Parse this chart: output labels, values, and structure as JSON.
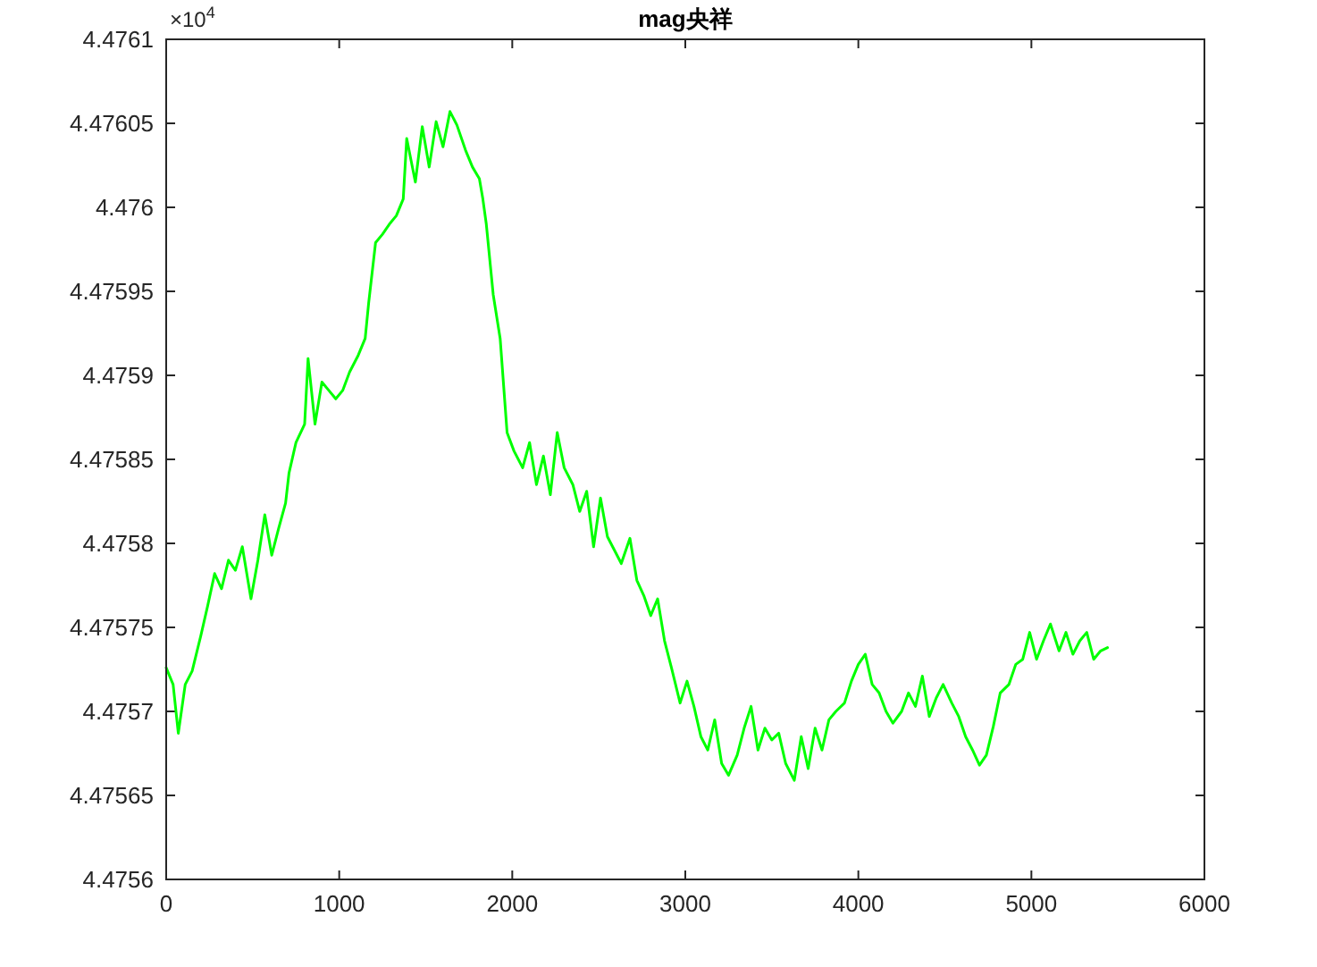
{
  "chart_data": {
    "type": "line",
    "title": "mag央祥",
    "annotations": [
      "×10$^{4}$"
    ],
    "x": [
      0,
      40,
      70,
      110,
      150,
      200,
      240,
      280,
      320,
      360,
      400,
      440,
      490,
      530,
      570,
      610,
      650,
      690,
      710,
      750,
      800,
      820,
      860,
      900,
      940,
      980,
      1020,
      1060,
      1110,
      1150,
      1170,
      1210,
      1250,
      1290,
      1330,
      1370,
      1390,
      1440,
      1480,
      1520,
      1560,
      1600,
      1640,
      1680,
      1730,
      1770,
      1810,
      1830,
      1850,
      1890,
      1930,
      1970,
      2010,
      2060,
      2100,
      2140,
      2180,
      2220,
      2260,
      2300,
      2350,
      2390,
      2430,
      2470,
      2510,
      2550,
      2590,
      2630,
      2680,
      2720,
      2760,
      2800,
      2840,
      2880,
      2920,
      2970,
      3010,
      3050,
      3090,
      3130,
      3170,
      3210,
      3250,
      3300,
      3340,
      3380,
      3420,
      3460,
      3500,
      3540,
      3580,
      3630,
      3670,
      3710,
      3750,
      3790,
      3830,
      3870,
      3920,
      3960,
      4000,
      4040,
      4080,
      4120,
      4160,
      4200,
      4250,
      4290,
      4330,
      4370,
      4410,
      4450,
      4490,
      4540,
      4580,
      4620,
      4660,
      4700,
      4740,
      4780,
      4820,
      4870,
      4910,
      4950,
      4990,
      5030,
      5070,
      5110,
      5160,
      5200,
      5240,
      5280,
      5320,
      5360,
      5400,
      5440
    ],
    "series": [
      {
        "color": "#00ff00",
        "values": [
          4.475726,
          4.475716,
          4.475687,
          4.475716,
          4.475724,
          4.475745,
          4.475763,
          4.475782,
          4.475773,
          4.47579,
          4.475784,
          4.475798,
          4.475767,
          4.47579,
          4.475817,
          4.475793,
          4.475809,
          4.475824,
          4.475842,
          4.47586,
          4.475871,
          4.47591,
          4.475871,
          4.475896,
          4.475891,
          4.475886,
          4.475891,
          4.475902,
          4.475912,
          4.475922,
          4.475943,
          4.475979,
          4.475984,
          4.47599,
          4.475995,
          4.476005,
          4.476041,
          4.476015,
          4.476048,
          4.476024,
          4.476051,
          4.476036,
          4.476057,
          4.476049,
          4.476034,
          4.476024,
          4.476017,
          4.476005,
          4.47599,
          4.475948,
          4.475922,
          4.475866,
          4.475855,
          4.475845,
          4.47586,
          4.475835,
          4.475852,
          4.475829,
          4.475866,
          4.475845,
          4.475835,
          4.475819,
          4.475831,
          4.475798,
          4.475827,
          4.475804,
          4.475796,
          4.475788,
          4.475803,
          4.475778,
          4.475769,
          4.475757,
          4.475767,
          4.475742,
          4.475726,
          4.475705,
          4.475718,
          4.475703,
          4.475685,
          4.475677,
          4.475695,
          4.475669,
          4.475662,
          4.475674,
          4.47569,
          4.475703,
          4.475677,
          4.47569,
          4.475683,
          4.475687,
          4.475669,
          4.475659,
          4.475685,
          4.475666,
          4.47569,
          4.475677,
          4.475695,
          4.4757,
          4.475705,
          4.475718,
          4.475728,
          4.475734,
          4.475716,
          4.475711,
          4.4757,
          4.475693,
          4.4757,
          4.475711,
          4.475703,
          4.475721,
          4.475697,
          4.475708,
          4.475716,
          4.475705,
          4.475697,
          4.475685,
          4.475677,
          4.475668,
          4.475674,
          4.475691,
          4.475711,
          4.475716,
          4.475728,
          4.475731,
          4.475747,
          4.475731,
          4.475742,
          4.475752,
          4.475736,
          4.475747,
          4.475734,
          4.475742,
          4.475747,
          4.475731,
          4.475736,
          4.475738
        ]
      }
    ],
    "xlim": [
      0,
      6000
    ],
    "ylim": [
      4.4756,
      4.4761
    ],
    "xticks": [
      0,
      1000,
      2000,
      3000,
      4000,
      5000,
      6000
    ],
    "yticks": [
      4.4756,
      4.47565,
      4.4757,
      4.47575,
      4.4758,
      4.47585,
      4.4759,
      4.47595,
      4.476,
      4.47605,
      4.4761
    ],
    "grid": false
  }
}
